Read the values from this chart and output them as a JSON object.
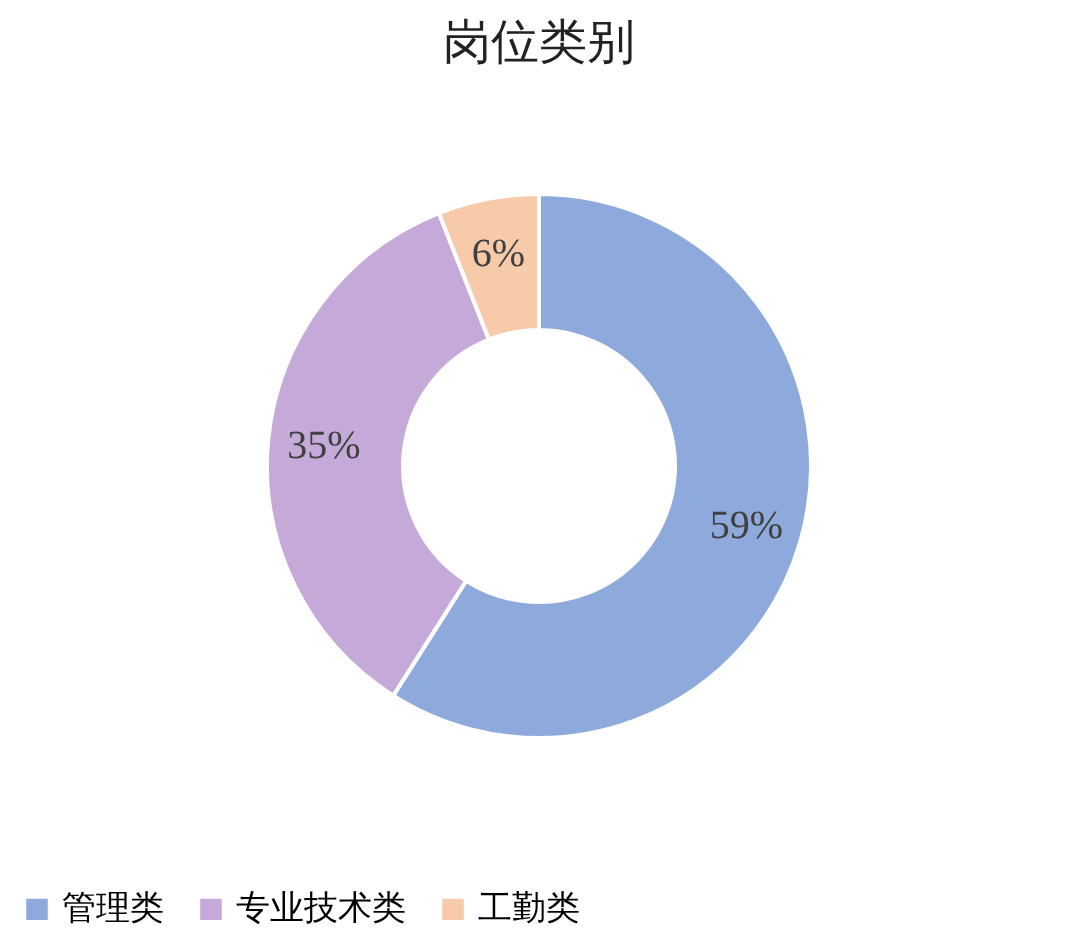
{
  "chart_data": {
    "type": "donut",
    "title": "岗位类别",
    "categories": [
      "管理类",
      "专业技术类",
      "工勤类"
    ],
    "values": [
      59,
      35,
      6
    ],
    "value_labels": [
      "59%",
      "35%",
      "6%"
    ],
    "colors": [
      "#8eaadc",
      "#c5a9d8",
      "#f7caa9"
    ],
    "legend": "bottom"
  }
}
